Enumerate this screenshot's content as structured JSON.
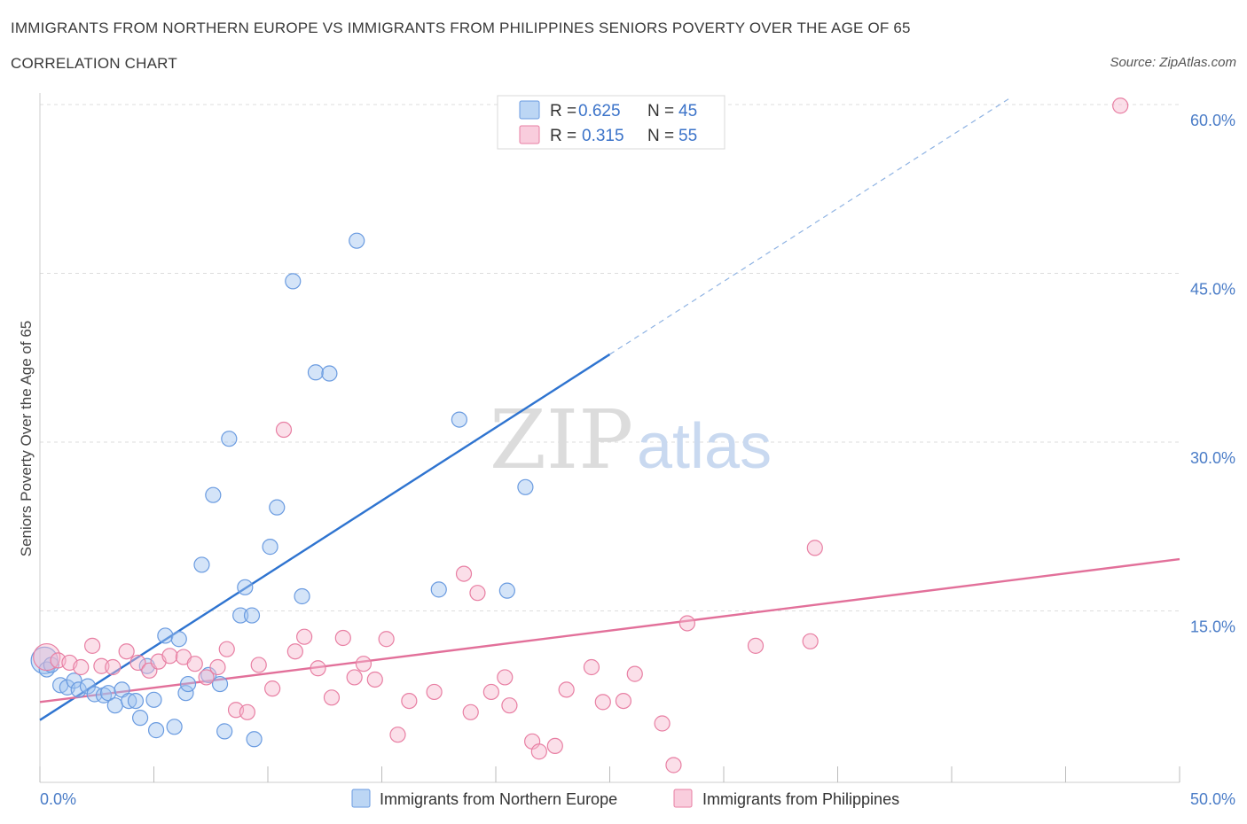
{
  "header": {
    "title": "IMMIGRANTS FROM NORTHERN EUROPE VS IMMIGRANTS FROM PHILIPPINES SENIORS POVERTY OVER THE AGE OF 65",
    "subtitle": "CORRELATION CHART",
    "source": "Source: ZipAtlas.com"
  },
  "watermark": {
    "zip": "ZIP",
    "atlas": "atlas"
  },
  "legend": {
    "r_label": "R =",
    "n_label": "N =",
    "rows": [
      {
        "r": "0.625",
        "n": "45"
      },
      {
        "r": "0.315",
        "n": "55"
      }
    ]
  },
  "chart_data": {
    "type": "scatter",
    "ylabel": "Seniors Poverty Over the Age of 65",
    "x_tick_labels": [
      "0.0%",
      "50.0%"
    ],
    "y_tick_labels": [
      "15.0%",
      "30.0%",
      "45.0%",
      "60.0%"
    ],
    "y_ticks": [
      15,
      30,
      45,
      60
    ],
    "xlim": [
      0,
      50
    ],
    "ylim": [
      0,
      60
    ],
    "grid": true,
    "legend_position": "top-center",
    "series": [
      {
        "name": "Immigrants from Northern Europe",
        "color": "#6a9be0",
        "fill": "rgba(160,196,240,0.45)",
        "trend": {
          "x": [
            0,
            25
          ],
          "y": [
            5.3,
            37.8
          ],
          "dash_extension_to": [
            42.5,
            60.5
          ]
        },
        "points": [
          [
            0.2,
            10.6
          ],
          [
            0.3,
            9.8
          ],
          [
            0.5,
            10.2
          ],
          [
            0.9,
            8.4
          ],
          [
            1.2,
            8.2
          ],
          [
            1.5,
            8.8
          ],
          [
            1.7,
            8.0
          ],
          [
            2.1,
            8.3
          ],
          [
            2.4,
            7.6
          ],
          [
            2.8,
            7.5
          ],
          [
            3.0,
            7.7
          ],
          [
            3.3,
            6.6
          ],
          [
            3.6,
            8.0
          ],
          [
            3.9,
            7.0
          ],
          [
            4.2,
            7.0
          ],
          [
            4.4,
            5.5
          ],
          [
            4.7,
            10.1
          ],
          [
            5.0,
            7.1
          ],
          [
            5.1,
            4.4
          ],
          [
            5.5,
            12.8
          ],
          [
            5.9,
            4.7
          ],
          [
            6.1,
            12.5
          ],
          [
            6.4,
            7.7
          ],
          [
            6.5,
            8.5
          ],
          [
            7.1,
            19.1
          ],
          [
            7.4,
            9.3
          ],
          [
            7.6,
            25.3
          ],
          [
            7.9,
            8.5
          ],
          [
            8.1,
            4.3
          ],
          [
            8.3,
            30.3
          ],
          [
            8.8,
            14.6
          ],
          [
            9.0,
            17.1
          ],
          [
            9.4,
            3.6
          ],
          [
            9.3,
            14.6
          ],
          [
            10.1,
            20.7
          ],
          [
            10.4,
            24.2
          ],
          [
            11.1,
            44.3
          ],
          [
            11.5,
            16.3
          ],
          [
            12.1,
            36.2
          ],
          [
            12.7,
            36.1
          ],
          [
            13.9,
            47.9
          ],
          [
            17.5,
            16.9
          ],
          [
            18.4,
            32.0
          ],
          [
            20.5,
            16.8
          ],
          [
            21.3,
            26.0
          ]
        ]
      },
      {
        "name": "Immigrants from Philippines",
        "color": "#e87fa3",
        "fill": "rgba(247,184,206,0.45)",
        "trend": {
          "x": [
            0,
            50
          ],
          "y": [
            6.9,
            19.6
          ]
        },
        "points": [
          [
            0.3,
            10.9
          ],
          [
            0.8,
            10.6
          ],
          [
            1.3,
            10.4
          ],
          [
            1.8,
            10.0
          ],
          [
            2.3,
            11.9
          ],
          [
            2.7,
            10.1
          ],
          [
            3.2,
            10.0
          ],
          [
            3.8,
            11.4
          ],
          [
            4.3,
            10.4
          ],
          [
            4.8,
            9.7
          ],
          [
            5.2,
            10.5
          ],
          [
            5.7,
            11.0
          ],
          [
            6.3,
            10.9
          ],
          [
            6.8,
            10.3
          ],
          [
            7.3,
            9.1
          ],
          [
            7.8,
            10.0
          ],
          [
            8.2,
            11.6
          ],
          [
            8.6,
            6.2
          ],
          [
            9.1,
            6.0
          ],
          [
            9.6,
            10.2
          ],
          [
            10.2,
            8.1
          ],
          [
            10.7,
            31.1
          ],
          [
            11.2,
            11.4
          ],
          [
            11.6,
            12.7
          ],
          [
            12.2,
            9.9
          ],
          [
            12.8,
            7.3
          ],
          [
            13.3,
            12.6
          ],
          [
            13.8,
            9.1
          ],
          [
            14.2,
            10.3
          ],
          [
            14.7,
            8.9
          ],
          [
            15.2,
            12.5
          ],
          [
            15.7,
            4.0
          ],
          [
            16.2,
            7.0
          ],
          [
            17.3,
            7.8
          ],
          [
            18.6,
            18.3
          ],
          [
            18.9,
            6.0
          ],
          [
            19.2,
            16.6
          ],
          [
            19.8,
            7.8
          ],
          [
            20.4,
            9.1
          ],
          [
            20.6,
            6.6
          ],
          [
            21.6,
            3.4
          ],
          [
            21.9,
            2.5
          ],
          [
            22.6,
            3.0
          ],
          [
            23.1,
            8.0
          ],
          [
            24.2,
            10.0
          ],
          [
            24.7,
            6.9
          ],
          [
            25.6,
            7.0
          ],
          [
            26.1,
            9.4
          ],
          [
            27.3,
            5.0
          ],
          [
            27.8,
            1.3
          ],
          [
            28.4,
            13.9
          ],
          [
            31.4,
            11.9
          ],
          [
            33.8,
            12.3
          ],
          [
            34.0,
            20.6
          ],
          [
            47.4,
            59.9
          ]
        ]
      }
    ]
  }
}
